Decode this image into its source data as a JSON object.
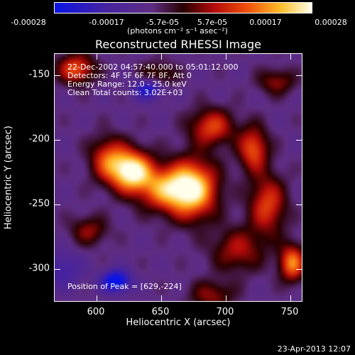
{
  "colorbar": {
    "ticks": [
      "-0.00028",
      "-0.00017",
      "-5.7e-05",
      "5.7e-05",
      "0.00017",
      "0.00028"
    ],
    "units": "(photons cm⁻² s⁻¹ asec⁻²)"
  },
  "title": "Reconstructed RHESSI Image",
  "annotations": {
    "time_range": "22-Dec-2002 04:57:40.000 to 05:01:12.000",
    "detectors": "Detectors: 4F 5F 6F 7F 8F, Att 0",
    "energy": "Energy Range: 12.0 - 25.0 keV",
    "method": "Clean     Total counts: 3.02E+03",
    "peak": "Position of Peak = [629,-224]"
  },
  "axes": {
    "xlabel": "Heliocentric X (arcsec)",
    "ylabel": "Heliocentric Y (arcsec)",
    "xticks": [
      "600",
      "650",
      "700",
      "750"
    ],
    "yticks": [
      "-150",
      "-200",
      "-250",
      "-300"
    ]
  },
  "timestamp": "23-Apr-2013 12:07",
  "chart_data": {
    "type": "heatmap",
    "title": "Reconstructed RHESSI Image",
    "xlabel": "Heliocentric X (arcsec)",
    "ylabel": "Heliocentric Y (arcsec)",
    "xlim": [
      568,
      760
    ],
    "ylim": [
      -325,
      -133
    ],
    "colorbar_range": [
      -0.00028,
      0.00028
    ],
    "peak_position": [
      629,
      -224
    ],
    "sources": [
      {
        "x": 628,
        "y": -224,
        "amp": 1.0,
        "sx": 11,
        "sy": 11
      },
      {
        "x": 676,
        "y": -238,
        "amp": 0.85,
        "sx": 13,
        "sy": 16
      },
      {
        "x": 655,
        "y": -238,
        "amp": 0.7,
        "sx": 15,
        "sy": 12
      },
      {
        "x": 610,
        "y": -215,
        "amp": 0.55,
        "sx": 10,
        "sy": 12
      },
      {
        "x": 690,
        "y": -190,
        "amp": 0.55,
        "sx": 12,
        "sy": 10
      },
      {
        "x": 722,
        "y": -207,
        "amp": 0.6,
        "sx": 8,
        "sy": 12
      },
      {
        "x": 733,
        "y": -250,
        "amp": 0.55,
        "sx": 10,
        "sy": 16
      },
      {
        "x": 752,
        "y": -295,
        "amp": 0.7,
        "sx": 7,
        "sy": 10
      },
      {
        "x": 710,
        "y": -285,
        "amp": 0.4,
        "sx": 14,
        "sy": 12
      },
      {
        "x": 690,
        "y": -320,
        "amp": 0.35,
        "sx": 12,
        "sy": 8
      },
      {
        "x": 585,
        "y": -145,
        "amp": 0.6,
        "sx": 10,
        "sy": 8
      },
      {
        "x": 595,
        "y": -270,
        "amp": 0.35,
        "sx": 10,
        "sy": 8
      },
      {
        "x": 648,
        "y": -150,
        "amp": 0.35,
        "sx": 10,
        "sy": 7
      },
      {
        "x": 740,
        "y": -155,
        "amp": 0.35,
        "sx": 10,
        "sy": 7
      },
      {
        "x": 616,
        "y": -309,
        "amp": -0.7,
        "sx": 8,
        "sy": 6
      },
      {
        "x": 641,
        "y": -160,
        "amp": -0.55,
        "sx": 8,
        "sy": 6
      },
      {
        "x": 575,
        "y": -300,
        "amp": -0.3,
        "sx": 10,
        "sy": 10
      }
    ]
  }
}
